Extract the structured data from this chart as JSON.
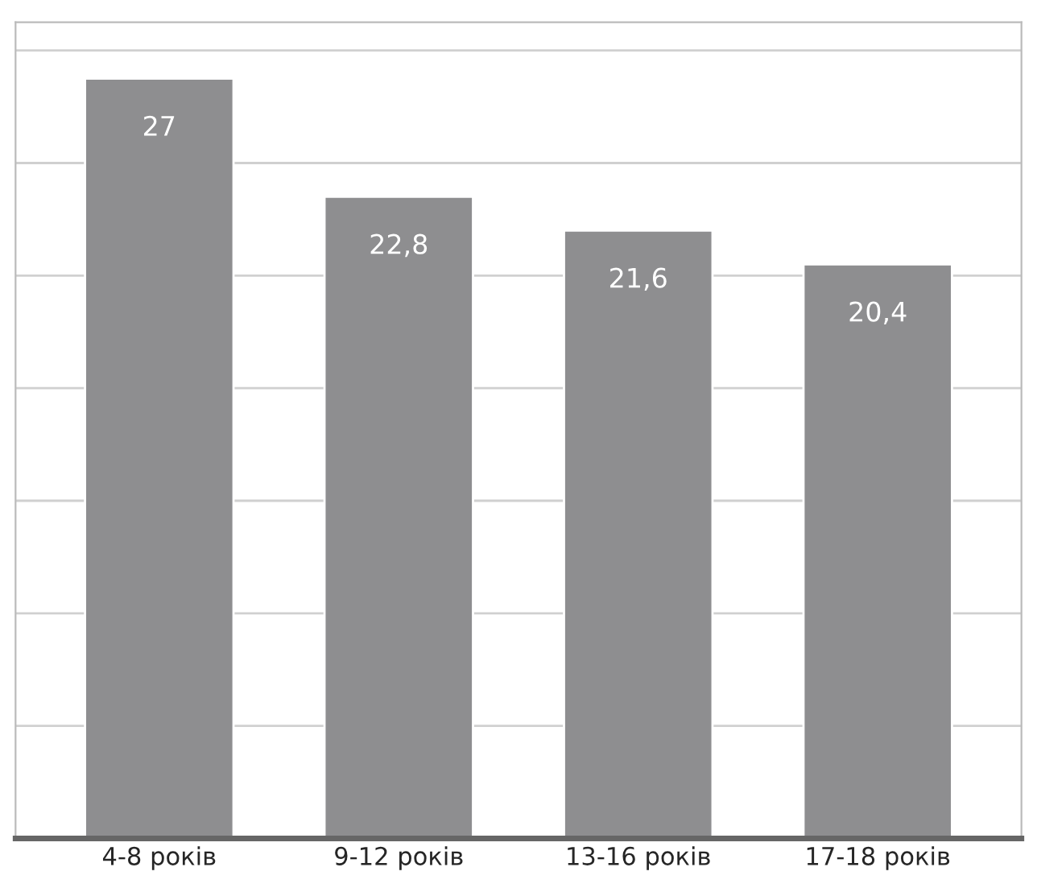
{
  "chart_data": {
    "type": "bar",
    "categories": [
      "4-8 років",
      "9-12 років",
      "13-16 років",
      "17-18 років"
    ],
    "values": [
      27,
      22.8,
      21.6,
      20.4
    ],
    "value_labels": [
      "27",
      "22,8",
      "21,6",
      "20,4"
    ],
    "color": "#8e8e90",
    "ylim": [
      0,
      29
    ],
    "yticks": [
      {
        "value": 0,
        "label": null
      },
      {
        "value": 4,
        "label": null
      },
      {
        "value": 8,
        "label": null
      },
      {
        "value": 12,
        "label": null
      },
      {
        "value": 16,
        "label": null
      },
      {
        "value": 20,
        "label": null
      },
      {
        "value": 24,
        "label": null
      },
      {
        "value": 28,
        "label": null
      }
    ],
    "grid": "y",
    "tick_labels": "x"
  }
}
